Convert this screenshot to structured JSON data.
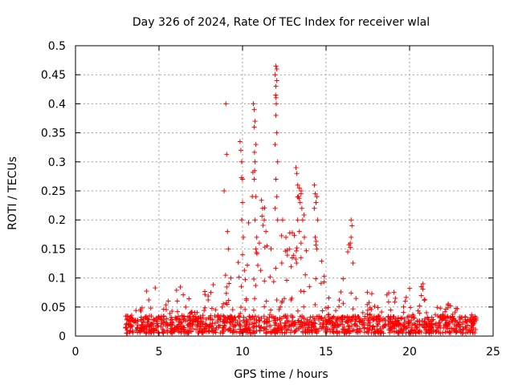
{
  "colors": {
    "series": "#ff0000",
    "grid": "#a0a0a0",
    "axis": "#000000",
    "background": "#ffffff"
  },
  "chart_data": {
    "type": "scatter",
    "title": "Day 326 of 2024, Rate Of TEC Index for receiver wlal",
    "xlabel": "GPS time / hours",
    "ylabel": "ROTI / TECUs",
    "xlim": [
      0,
      25
    ],
    "ylim": [
      0,
      0.5
    ],
    "grid": true,
    "marker": "plus",
    "x_ticks": [
      0,
      5,
      10,
      15,
      20,
      25
    ],
    "x_tick_labels": [
      "0",
      "5",
      "10",
      "15",
      "20",
      "25"
    ],
    "y_ticks": [
      0,
      0.05,
      0.1,
      0.15,
      0.2,
      0.25,
      0.3,
      0.35,
      0.4,
      0.45,
      0.5
    ],
    "y_tick_labels": [
      "0",
      "0.05",
      "0.1",
      "0.15",
      "0.2",
      "0.25",
      "0.3",
      "0.35",
      "0.4",
      "0.45",
      "0.5"
    ],
    "series": [
      {
        "name": "ROTI",
        "x_range": [
          3.0,
          24.0
        ],
        "baseline_range": [
          0.005,
          0.035
        ],
        "envelope": [
          [
            3.0,
            0.02
          ],
          [
            3.5,
            0.045
          ],
          [
            4.0,
            0.05
          ],
          [
            4.2,
            0.085
          ],
          [
            4.5,
            0.06
          ],
          [
            4.8,
            0.09
          ],
          [
            5.0,
            0.05
          ],
          [
            5.5,
            0.06
          ],
          [
            6.0,
            0.09
          ],
          [
            6.5,
            0.08
          ],
          [
            6.8,
            0.1
          ],
          [
            7.0,
            0.07
          ],
          [
            7.5,
            0.04
          ],
          [
            7.9,
            0.125
          ],
          [
            8.2,
            0.1
          ],
          [
            8.5,
            0.04
          ],
          [
            8.8,
            0.08
          ],
          [
            9.0,
            0.11
          ],
          [
            9.2,
            0.1
          ],
          [
            9.5,
            0.07
          ],
          [
            9.7,
            0.19
          ],
          [
            9.9,
            0.33
          ],
          [
            10.2,
            0.12
          ],
          [
            10.6,
            0.4
          ],
          [
            10.9,
            0.2
          ],
          [
            11.3,
            0.26
          ],
          [
            11.6,
            0.1
          ],
          [
            12.0,
            0.465
          ],
          [
            12.3,
            0.2
          ],
          [
            12.6,
            0.15
          ],
          [
            12.9,
            0.2
          ],
          [
            13.2,
            0.29
          ],
          [
            13.5,
            0.26
          ],
          [
            13.8,
            0.2
          ],
          [
            14.1,
            0.1
          ],
          [
            14.4,
            0.26
          ],
          [
            14.8,
            0.12
          ],
          [
            15.2,
            0.08
          ],
          [
            15.6,
            0.07
          ],
          [
            16.0,
            0.1
          ],
          [
            16.3,
            0.145
          ],
          [
            16.5,
            0.2
          ],
          [
            16.8,
            0.07
          ],
          [
            17.2,
            0.07
          ],
          [
            17.5,
            0.085
          ],
          [
            18.0,
            0.06
          ],
          [
            18.5,
            0.08
          ],
          [
            19.0,
            0.08
          ],
          [
            19.5,
            0.05
          ],
          [
            20.0,
            0.08
          ],
          [
            20.4,
            0.05
          ],
          [
            20.8,
            0.09
          ],
          [
            21.2,
            0.05
          ],
          [
            21.6,
            0.05
          ],
          [
            22.0,
            0.05
          ],
          [
            22.5,
            0.06
          ],
          [
            23.0,
            0.05
          ],
          [
            23.5,
            0.04
          ],
          [
            24.0,
            0.035
          ]
        ],
        "points": [
          [
            9.0,
            0.4
          ],
          [
            8.9,
            0.25
          ],
          [
            9.05,
            0.313
          ],
          [
            9.1,
            0.18
          ],
          [
            9.15,
            0.15
          ],
          [
            9.3,
            0.1
          ],
          [
            9.85,
            0.335
          ],
          [
            9.9,
            0.32
          ],
          [
            9.95,
            0.3
          ],
          [
            10.0,
            0.27
          ],
          [
            10.0,
            0.23
          ],
          [
            9.95,
            0.2
          ],
          [
            10.05,
            0.17
          ],
          [
            10.0,
            0.14
          ],
          [
            10.65,
            0.4
          ],
          [
            10.7,
            0.39
          ],
          [
            10.75,
            0.37
          ],
          [
            10.7,
            0.36
          ],
          [
            10.8,
            0.33
          ],
          [
            10.75,
            0.3
          ],
          [
            10.7,
            0.27
          ],
          [
            10.8,
            0.24
          ],
          [
            10.75,
            0.2
          ],
          [
            10.85,
            0.17
          ],
          [
            10.8,
            0.15
          ],
          [
            11.2,
            0.22
          ],
          [
            11.3,
            0.2
          ],
          [
            11.4,
            0.18
          ],
          [
            12.0,
            0.465
          ],
          [
            12.05,
            0.46
          ],
          [
            11.95,
            0.45
          ],
          [
            12.05,
            0.44
          ],
          [
            12.0,
            0.43
          ],
          [
            11.98,
            0.415
          ],
          [
            12.02,
            0.4
          ],
          [
            12.0,
            0.38
          ],
          [
            12.05,
            0.35
          ],
          [
            11.95,
            0.33
          ],
          [
            12.1,
            0.3
          ],
          [
            12.0,
            0.27
          ],
          [
            12.05,
            0.24
          ],
          [
            11.95,
            0.22
          ],
          [
            12.1,
            0.2
          ],
          [
            12.4,
            0.2
          ],
          [
            12.6,
            0.17
          ],
          [
            12.8,
            0.15
          ],
          [
            13.2,
            0.29
          ],
          [
            13.25,
            0.28
          ],
          [
            13.3,
            0.26
          ],
          [
            13.4,
            0.255
          ],
          [
            13.5,
            0.245
          ],
          [
            13.35,
            0.24
          ],
          [
            13.45,
            0.23
          ],
          [
            13.55,
            0.22
          ],
          [
            13.6,
            0.2
          ],
          [
            13.3,
            0.2
          ],
          [
            13.4,
            0.18
          ],
          [
            13.7,
            0.17
          ],
          [
            13.5,
            0.16
          ],
          [
            14.3,
            0.26
          ],
          [
            14.35,
            0.245
          ],
          [
            14.45,
            0.24
          ],
          [
            14.4,
            0.23
          ],
          [
            14.3,
            0.22
          ],
          [
            14.5,
            0.2
          ],
          [
            14.35,
            0.17
          ],
          [
            14.45,
            0.15
          ],
          [
            16.3,
            0.145
          ],
          [
            16.5,
            0.2
          ],
          [
            16.55,
            0.19
          ],
          [
            16.5,
            0.17
          ],
          [
            16.45,
            0.16
          ],
          [
            20.0,
            0.082
          ],
          [
            20.8,
            0.09
          ],
          [
            20.7,
            0.085
          ]
        ]
      }
    ]
  }
}
